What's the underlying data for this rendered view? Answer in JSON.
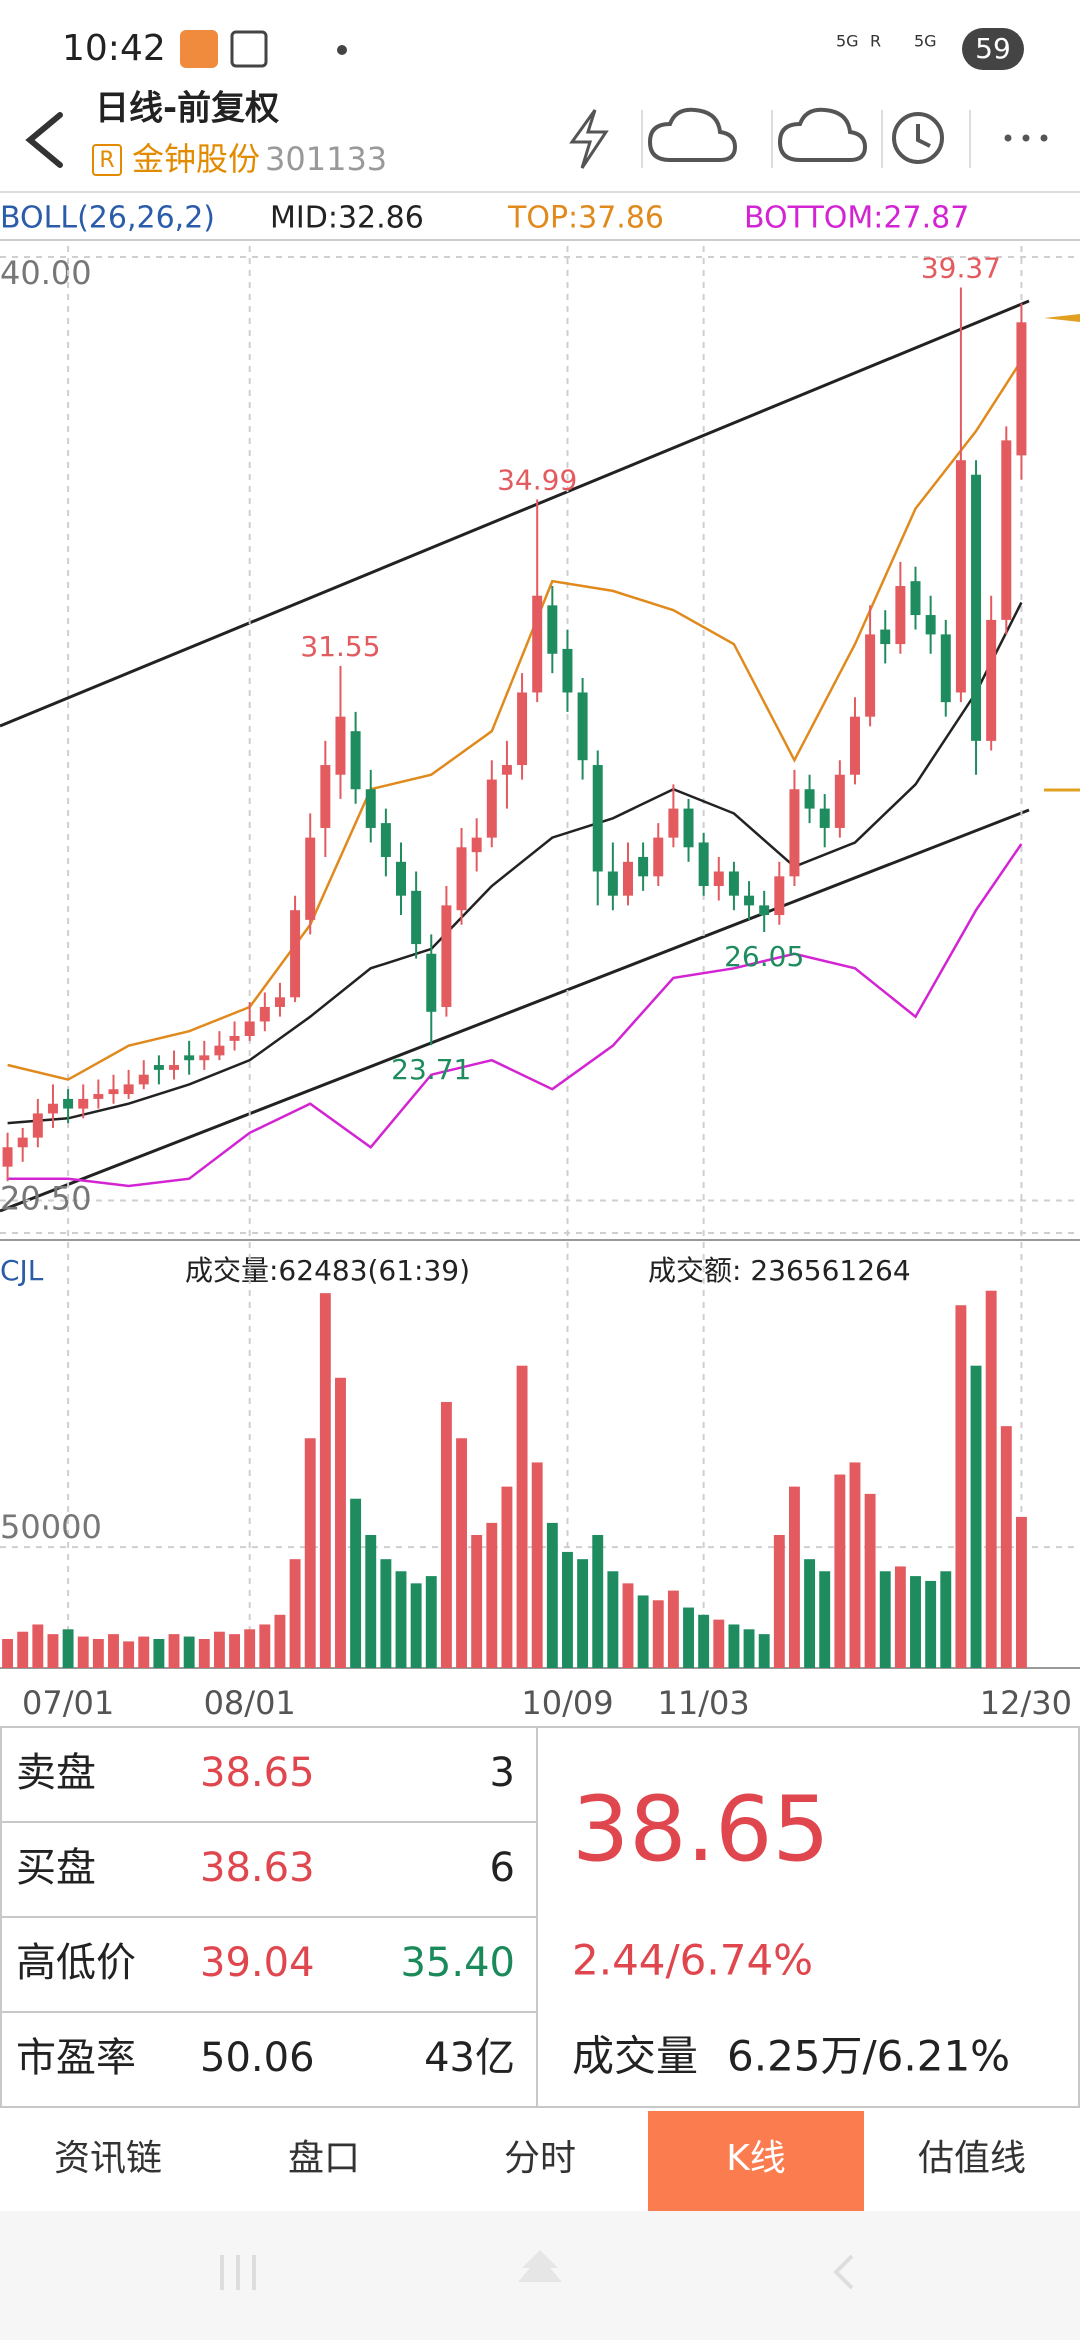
{
  "status_bar": {
    "time": "10:42",
    "battery": "59",
    "signal_labels": [
      "5G",
      "R",
      "5G"
    ]
  },
  "header": {
    "title": "日线-前复权",
    "badge": "R",
    "name": "金钟股份",
    "code": "301133"
  },
  "chart_data": {
    "type": "candlestick",
    "indicator": "BOLL(26,26,2)",
    "up_color": "#e35a5f",
    "down_color": "#1e8c5e",
    "ylim": [
      20.18,
      40
    ],
    "yticks": [
      {
        "value": 40,
        "label": "40.00"
      },
      {
        "value": 20.5,
        "label": "20.50"
      }
    ],
    "categories": [
      null,
      null,
      null,
      null,
      "07/01",
      null,
      null,
      null,
      null,
      null,
      null,
      null,
      null,
      null,
      null,
      null,
      "08/01",
      null,
      null,
      null,
      null,
      null,
      null,
      null,
      null,
      null,
      null,
      null,
      null,
      null,
      null,
      null,
      null,
      null,
      null,
      null,
      null,
      "10/09",
      null,
      null,
      null,
      null,
      null,
      null,
      null,
      null,
      "11/03",
      null,
      null,
      null,
      null,
      null,
      null,
      null,
      null,
      null,
      null,
      null,
      null,
      null,
      null,
      null,
      null,
      null,
      null,
      null,
      null,
      "12/30"
    ],
    "candles": [
      [
        21.2,
        21.9,
        20.9,
        21.6
      ],
      [
        21.6,
        22.0,
        21.3,
        21.8
      ],
      [
        21.8,
        22.6,
        21.6,
        22.3
      ],
      [
        22.3,
        22.9,
        22.0,
        22.5
      ],
      [
        22.6,
        22.8,
        22.1,
        22.4
      ],
      [
        22.4,
        22.9,
        22.2,
        22.6
      ],
      [
        22.6,
        23.0,
        22.4,
        22.7
      ],
      [
        22.7,
        23.1,
        22.5,
        22.8
      ],
      [
        22.7,
        23.2,
        22.6,
        22.9
      ],
      [
        22.9,
        23.4,
        22.8,
        23.1
      ],
      [
        23.3,
        23.5,
        22.9,
        23.2
      ],
      [
        23.2,
        23.6,
        23.0,
        23.3
      ],
      [
        23.5,
        23.8,
        23.1,
        23.4
      ],
      [
        23.4,
        23.8,
        23.2,
        23.5
      ],
      [
        23.5,
        24.0,
        23.4,
        23.7
      ],
      [
        23.8,
        24.2,
        23.6,
        23.9
      ],
      [
        23.9,
        24.6,
        23.8,
        24.2
      ],
      [
        24.2,
        24.8,
        24.0,
        24.5
      ],
      [
        24.5,
        25.0,
        24.3,
        24.7
      ],
      [
        24.7,
        26.8,
        24.6,
        26.5
      ],
      [
        26.3,
        28.5,
        26.0,
        28.0
      ],
      [
        28.2,
        30.0,
        27.6,
        29.5
      ],
      [
        29.3,
        31.55,
        28.8,
        30.5
      ],
      [
        30.2,
        30.6,
        28.7,
        29.0
      ],
      [
        29.0,
        29.4,
        27.9,
        28.2
      ],
      [
        28.3,
        28.6,
        27.2,
        27.6
      ],
      [
        27.5,
        27.9,
        26.4,
        26.8
      ],
      [
        26.9,
        27.3,
        25.5,
        25.8
      ],
      [
        25.6,
        26.0,
        23.71,
        24.4
      ],
      [
        24.5,
        27.0,
        24.3,
        26.6
      ],
      [
        26.5,
        28.2,
        26.2,
        27.8
      ],
      [
        27.7,
        28.4,
        27.3,
        28.0
      ],
      [
        28.0,
        29.6,
        27.8,
        29.2
      ],
      [
        29.3,
        30.0,
        28.6,
        29.5
      ],
      [
        29.5,
        31.4,
        29.2,
        31.0
      ],
      [
        31.0,
        34.99,
        30.8,
        33.0
      ],
      [
        32.8,
        33.2,
        31.4,
        31.8
      ],
      [
        31.9,
        32.3,
        30.6,
        31.0
      ],
      [
        31.0,
        31.3,
        29.2,
        29.6
      ],
      [
        29.5,
        29.8,
        26.6,
        27.3
      ],
      [
        27.3,
        27.9,
        26.5,
        26.8
      ],
      [
        26.8,
        27.9,
        26.6,
        27.5
      ],
      [
        27.6,
        27.9,
        26.9,
        27.2
      ],
      [
        27.2,
        28.3,
        27.0,
        28.0
      ],
      [
        28.0,
        29.1,
        27.8,
        28.6
      ],
      [
        28.6,
        28.8,
        27.5,
        27.8
      ],
      [
        27.9,
        28.1,
        26.8,
        27.0
      ],
      [
        27.0,
        27.6,
        26.7,
        27.3
      ],
      [
        27.3,
        27.5,
        26.5,
        26.8
      ],
      [
        26.8,
        27.1,
        26.3,
        26.6
      ],
      [
        26.6,
        26.9,
        26.05,
        26.4
      ],
      [
        26.4,
        27.5,
        26.2,
        27.2
      ],
      [
        27.2,
        29.4,
        27.0,
        29.0
      ],
      [
        29.0,
        29.3,
        28.3,
        28.6
      ],
      [
        28.6,
        28.9,
        27.8,
        28.2
      ],
      [
        28.2,
        29.6,
        28.0,
        29.3
      ],
      [
        29.3,
        30.9,
        29.1,
        30.5
      ],
      [
        30.5,
        32.8,
        30.3,
        32.2
      ],
      [
        32.3,
        32.7,
        31.6,
        32.0
      ],
      [
        32.0,
        33.7,
        31.8,
        33.2
      ],
      [
        33.3,
        33.6,
        32.3,
        32.6
      ],
      [
        32.6,
        33.0,
        31.8,
        32.2
      ],
      [
        32.2,
        32.5,
        30.5,
        30.8
      ],
      [
        31.0,
        39.37,
        30.8,
        35.8
      ],
      [
        35.5,
        35.8,
        29.3,
        30.0
      ],
      [
        30.0,
        33.0,
        29.8,
        32.5
      ],
      [
        32.5,
        36.5,
        32.2,
        36.21
      ],
      [
        35.9,
        39.04,
        35.4,
        38.65
      ]
    ],
    "bands": [
      {
        "label": "MID:32.86",
        "color": "#222222",
        "x": [
          0,
          4,
          8,
          12,
          16,
          20,
          24,
          28,
          32,
          36,
          40,
          44,
          48,
          52,
          56,
          60,
          64,
          67
        ],
        "values": [
          22.1,
          22.2,
          22.5,
          22.9,
          23.4,
          24.3,
          25.3,
          25.7,
          27.0,
          28.0,
          28.4,
          29.0,
          28.5,
          27.4,
          27.9,
          29.1,
          31.0,
          32.86
        ]
      },
      {
        "label": "TOP:37.86",
        "color": "#e08a1e",
        "x": [
          0,
          4,
          8,
          12,
          16,
          20,
          24,
          28,
          32,
          36,
          40,
          44,
          48,
          52,
          56,
          60,
          64,
          67
        ],
        "values": [
          23.3,
          23.0,
          23.7,
          24.0,
          24.5,
          26.2,
          29.0,
          29.3,
          30.2,
          33.3,
          33.1,
          32.7,
          32.0,
          29.6,
          32.0,
          34.8,
          36.4,
          37.86
        ]
      },
      {
        "label": "BOTTOM:27.87",
        "color": "#d324d3",
        "x": [
          0,
          4,
          8,
          12,
          16,
          20,
          24,
          28,
          32,
          36,
          40,
          44,
          48,
          52,
          56,
          60,
          64,
          67
        ],
        "values": [
          20.95,
          20.95,
          20.8,
          20.95,
          21.9,
          22.5,
          21.6,
          23.1,
          23.4,
          22.8,
          23.7,
          25.1,
          25.3,
          25.6,
          25.3,
          24.3,
          26.5,
          27.87
        ]
      }
    ],
    "annotations": [
      {
        "index": 22,
        "value": 31.55,
        "side": "high"
      },
      {
        "index": 35,
        "value": 34.99,
        "side": "high"
      },
      {
        "index": 63,
        "value": 39.37,
        "side": "high"
      },
      {
        "index": 28,
        "value": 23.71,
        "side": "low"
      },
      {
        "index": 50,
        "value": 26.05,
        "side": "low"
      }
    ],
    "volume": {
      "title": "CJL",
      "label": "成交量:62483(61:39)",
      "amount": "成交额: 236561264",
      "ylim": [
        0,
        171600
      ],
      "yticks": [
        50000
      ],
      "values": [
        12000,
        15000,
        18000,
        14000,
        16000,
        13000,
        12000,
        14000,
        11000,
        13000,
        12000,
        14000,
        13000,
        12000,
        15000,
        14000,
        16000,
        18000,
        22000,
        45000,
        95000,
        155000,
        120000,
        70000,
        55000,
        45000,
        40000,
        35000,
        38000,
        110000,
        95000,
        55000,
        60000,
        75000,
        125000,
        85000,
        60000,
        48000,
        45000,
        55000,
        40000,
        35000,
        30000,
        28000,
        32000,
        25000,
        22000,
        20000,
        18000,
        16000,
        14000,
        55000,
        75000,
        45000,
        40000,
        80000,
        85000,
        72000,
        40000,
        42000,
        38000,
        36000,
        40000,
        150000,
        125000,
        156000,
        100000,
        62483
      ]
    }
  },
  "quote": {
    "rows": [
      [
        "卖盘",
        "38.65",
        "3"
      ],
      [
        "买盘",
        "38.63",
        "6"
      ],
      [
        "高低价",
        "39.04",
        "35.40"
      ],
      [
        "市盈率",
        "50.06",
        "43亿"
      ]
    ],
    "price": "38.65",
    "change": "2.44/6.74%",
    "volume_label": "成交量",
    "volume_text": "6.25万/6.21%"
  },
  "tabs": [
    "资讯链",
    "盘口",
    "分时",
    "K线",
    "估值线"
  ],
  "active_tab": 3
}
